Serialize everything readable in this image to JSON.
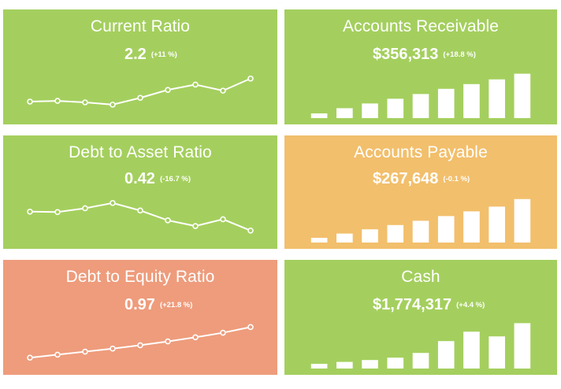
{
  "colors": {
    "good": "#a4cf5e",
    "warning": "#f2bf6c",
    "bad": "#ee9c7c",
    "chart": "#ffffff"
  },
  "kpis": [
    {
      "title": "Current Ratio",
      "value": "2.2",
      "change": "(+11 %)",
      "status": "good",
      "chart_type": "line",
      "trend": [
        0.27,
        0.29,
        0.25,
        0.19,
        0.37,
        0.58,
        0.72,
        0.56,
        0.88
      ]
    },
    {
      "title": "Accounts Receivable",
      "value": "$356,313",
      "change": "(+18.8 %)",
      "status": "good",
      "chart_type": "bar",
      "trend": [
        0.1,
        0.21,
        0.31,
        0.41,
        0.51,
        0.62,
        0.72,
        0.82,
        0.94
      ]
    },
    {
      "title": "Debt to Asset Ratio",
      "value": "0.42",
      "change": "(-16.7 %)",
      "status": "good",
      "chart_type": "line",
      "trend": [
        0.65,
        0.64,
        0.74,
        0.88,
        0.68,
        0.42,
        0.27,
        0.45,
        0.15
      ]
    },
    {
      "title": "Accounts Payable",
      "value": "$267,648",
      "change": "(-0.1 %)",
      "status": "warning",
      "chart_type": "bar",
      "trend": [
        0.1,
        0.19,
        0.28,
        0.37,
        0.46,
        0.56,
        0.66,
        0.76,
        0.92
      ]
    },
    {
      "title": "Debt to Equity Ratio",
      "value": "0.97",
      "change": "(+21.8 %)",
      "status": "bad",
      "chart_type": "line",
      "trend": [
        0.12,
        0.2,
        0.28,
        0.36,
        0.45,
        0.55,
        0.66,
        0.78,
        0.93
      ]
    },
    {
      "title": "Cash",
      "value": "$1,774,317",
      "change": "(+4.4 %)",
      "status": "good",
      "chart_type": "bar",
      "trend": [
        0.1,
        0.14,
        0.18,
        0.23,
        0.33,
        0.58,
        0.78,
        0.68,
        0.96
      ]
    }
  ]
}
